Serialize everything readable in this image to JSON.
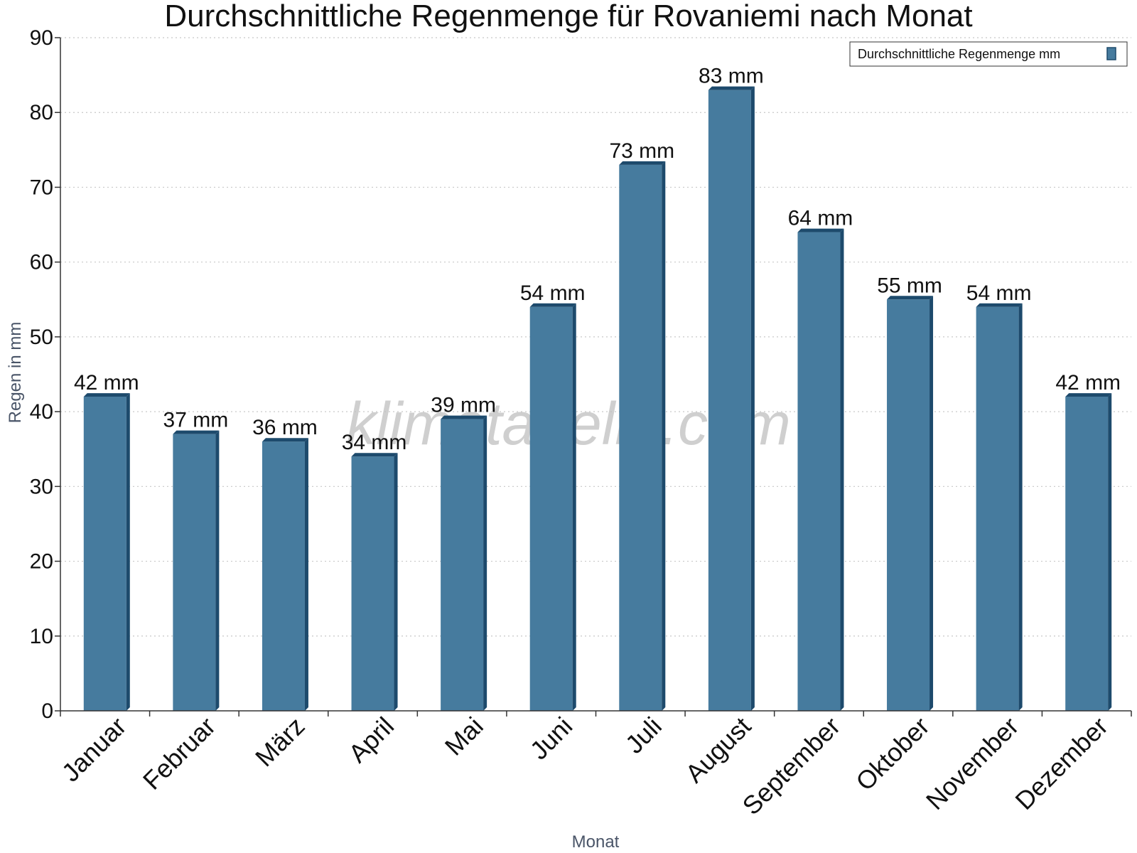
{
  "chart_data": {
    "type": "bar",
    "title": "Durchschnittliche Regenmenge für Rovaniemi nach Monat",
    "xlabel": "Monat",
    "ylabel": "Regen in mm",
    "categories": [
      "Januar",
      "Februar",
      "März",
      "April",
      "Mai",
      "Juni",
      "Juli",
      "August",
      "September",
      "Oktober",
      "November",
      "Dezember"
    ],
    "series": [
      {
        "name": "Durchschnittliche Regenmenge mm",
        "values": [
          42,
          37,
          36,
          34,
          39,
          54,
          73,
          83,
          64,
          55,
          54,
          42
        ],
        "labels": [
          "42 mm",
          "37 mm",
          "36 mm",
          "34 mm",
          "39 mm",
          "54 mm",
          "73 mm",
          "83 mm",
          "64 mm",
          "55 mm",
          "54 mm",
          "42 mm"
        ],
        "color": "#467b9e",
        "shade_color": "#1d4a6c"
      }
    ],
    "ylim": [
      0,
      90
    ],
    "yticks": [
      0,
      10,
      20,
      30,
      40,
      50,
      60,
      70,
      80,
      90
    ],
    "grid": true,
    "legend_position": "top-right",
    "watermark": "klimatabelle.com"
  }
}
